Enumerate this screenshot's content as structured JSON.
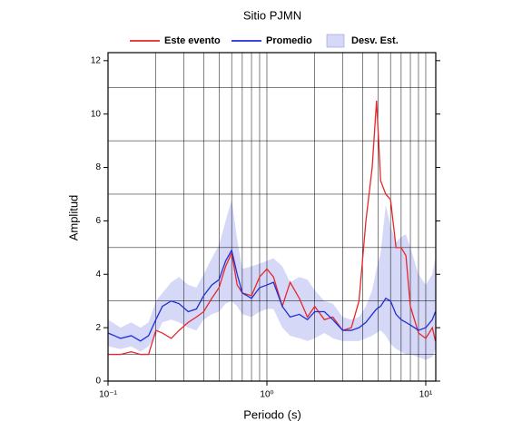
{
  "chart_data": {
    "type": "line",
    "title": "Sitio PJMN",
    "xlabel": "Periodo (s)",
    "ylabel": "Amplitud",
    "xscale": "log",
    "x": [
      0.1,
      0.12,
      0.14,
      0.16,
      0.18,
      0.2,
      0.22,
      0.25,
      0.28,
      0.32,
      0.36,
      0.4,
      0.45,
      0.5,
      0.55,
      0.6,
      0.65,
      0.7,
      0.8,
      0.9,
      1.0,
      1.1,
      1.25,
      1.4,
      1.6,
      1.8,
      2.0,
      2.3,
      2.6,
      3.0,
      3.4,
      3.8,
      4.2,
      4.6,
      4.9,
      5.2,
      5.6,
      6.0,
      6.5,
      7.0,
      7.5,
      8.0,
      9.0,
      10,
      11,
      11.5
    ],
    "series": [
      {
        "name": "Este evento",
        "color": "#e8262a",
        "values": [
          1.0,
          1.0,
          1.1,
          1.0,
          1.0,
          1.9,
          1.8,
          1.6,
          1.9,
          2.2,
          2.4,
          2.6,
          3.1,
          3.5,
          4.3,
          4.8,
          3.6,
          3.3,
          3.2,
          3.9,
          4.2,
          3.9,
          2.8,
          3.7,
          3.1,
          2.4,
          2.8,
          2.3,
          2.4,
          1.9,
          2.0,
          3.0,
          6.0,
          8.0,
          10.5,
          7.5,
          7.0,
          6.8,
          5.0,
          5.0,
          4.7,
          2.8,
          1.8,
          1.6,
          2.0,
          1.5
        ]
      },
      {
        "name": "Promedio",
        "color": "#1f2fd6",
        "values": [
          1.8,
          1.6,
          1.7,
          1.5,
          1.7,
          2.3,
          2.8,
          3.0,
          2.9,
          2.6,
          2.7,
          3.2,
          3.6,
          3.8,
          4.5,
          4.9,
          4.0,
          3.3,
          3.1,
          3.5,
          3.6,
          3.7,
          2.8,
          2.4,
          2.5,
          2.3,
          2.6,
          2.6,
          2.3,
          1.9,
          1.9,
          2.0,
          2.2,
          2.5,
          2.7,
          2.8,
          3.1,
          3.0,
          2.5,
          2.3,
          2.2,
          2.1,
          1.9,
          2.0,
          2.3,
          2.6
        ]
      }
    ],
    "band": {
      "name": "Desv. Est.",
      "color": "#d6d8f8",
      "upper": [
        2.3,
        2.0,
        2.2,
        2.0,
        2.2,
        3.0,
        3.3,
        3.7,
        3.9,
        3.6,
        3.5,
        4.0,
        4.6,
        5.1,
        6.0,
        6.8,
        5.3,
        4.2,
        4.3,
        4.4,
        4.5,
        4.6,
        4.3,
        3.7,
        3.9,
        3.8,
        3.4,
        3.0,
        2.9,
        2.4,
        2.3,
        2.4,
        2.8,
        3.4,
        4.2,
        4.8,
        6.6,
        5.8,
        5.2,
        5.4,
        5.5,
        5.0,
        4.0,
        3.6,
        4.0,
        4.6
      ],
      "lower": [
        1.3,
        1.2,
        1.3,
        1.1,
        1.3,
        1.7,
        2.2,
        2.3,
        2.2,
        2.0,
        1.9,
        2.3,
        2.5,
        2.6,
        2.9,
        3.0,
        2.8,
        2.5,
        2.4,
        2.6,
        2.7,
        2.7,
        2.0,
        1.7,
        1.6,
        1.5,
        1.6,
        1.8,
        1.6,
        1.5,
        1.5,
        1.5,
        1.6,
        1.7,
        1.8,
        1.9,
        1.7,
        1.4,
        1.2,
        1.1,
        1.0,
        1.0,
        0.9,
        0.8,
        0.9,
        1.2
      ]
    },
    "xlim": [
      0.1,
      11.56
    ],
    "ylim": [
      0,
      12.3
    ],
    "xticks": [
      {
        "value": 0.1,
        "label": "10⁻¹"
      },
      {
        "value": 1,
        "label": "10⁰"
      },
      {
        "value": 10,
        "label": "10¹"
      }
    ],
    "yticks": [
      0,
      2,
      4,
      6,
      8,
      10,
      12
    ],
    "xgrid": [
      0.2,
      0.3,
      0.4,
      0.5,
      0.6,
      0.7,
      0.8,
      0.9,
      1,
      2,
      3,
      4,
      5,
      6,
      7,
      8,
      9,
      10
    ],
    "ygrid": [
      1,
      3,
      5,
      7,
      9,
      11
    ],
    "grid": true
  }
}
